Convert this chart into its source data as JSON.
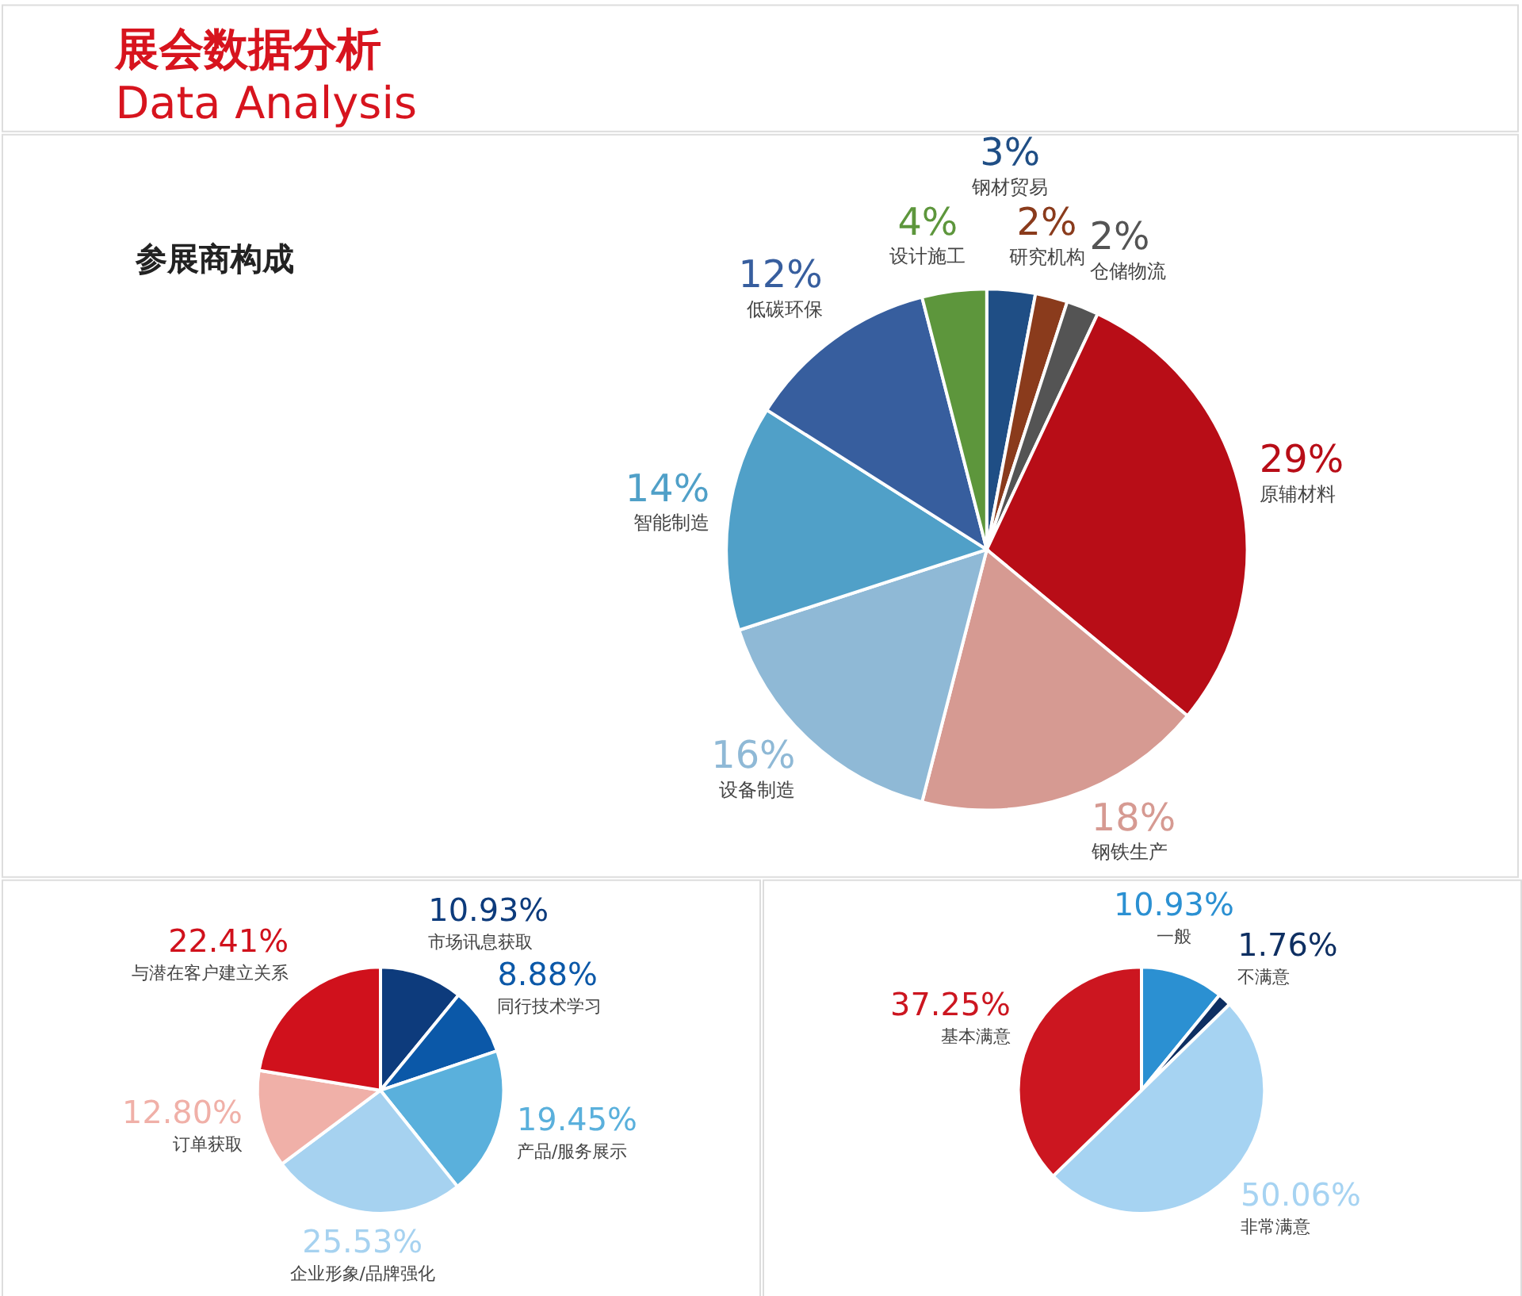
{
  "chart_data": [
    {
      "type": "other",
      "title": "展会数据分析",
      "subtitle": "Data Analysis"
    },
    {
      "type": "pie",
      "title": "参展商构成",
      "categories": [
        "钢材贸易",
        "研究机构",
        "仓储物流",
        "原辅材料",
        "钢铁生产",
        "设备制造",
        "智能制造",
        "低碳环保",
        "设计施工"
      ],
      "values": [
        3,
        2,
        2,
        29,
        18,
        16,
        14,
        12,
        4
      ],
      "colors": [
        "#1f4e85",
        "#8a3b1c",
        "#545454",
        "#b80d17",
        "#d69a92",
        "#8fb9d6",
        "#50a0c8",
        "#375e9e",
        "#5d963c"
      ],
      "value_labels": [
        "3%",
        "2%",
        "2%",
        "29%",
        "18%",
        "16%",
        "14%",
        "12%",
        "4%"
      ]
    },
    {
      "type": "pie",
      "categories": [
        "市场讯息获取",
        "同行技术学习",
        "产品/服务展示",
        "企业形象/品牌强化",
        "订单获取",
        "与潜在客户建立关系"
      ],
      "values": [
        10.93,
        8.88,
        19.45,
        25.53,
        12.8,
        22.41
      ],
      "colors": [
        "#0d3b7c",
        "#0b58a8",
        "#5ab0dc",
        "#a6d2f0",
        "#f0b0a8",
        "#d0111c"
      ],
      "value_labels": [
        "10.93%",
        "8.88%",
        "19.45%",
        "25.53%",
        "12.80%",
        "22.41%"
      ]
    },
    {
      "type": "pie",
      "categories": [
        "一般",
        "不满意",
        "非常满意",
        "基本满意"
      ],
      "values": [
        10.93,
        1.76,
        50.06,
        37.25
      ],
      "colors": [
        "#2b90d2",
        "#0e2f62",
        "#a6d3f2",
        "#cc1620"
      ],
      "value_labels": [
        "10.93%",
        "1.76%",
        "50.06%",
        "37.25%"
      ]
    }
  ]
}
